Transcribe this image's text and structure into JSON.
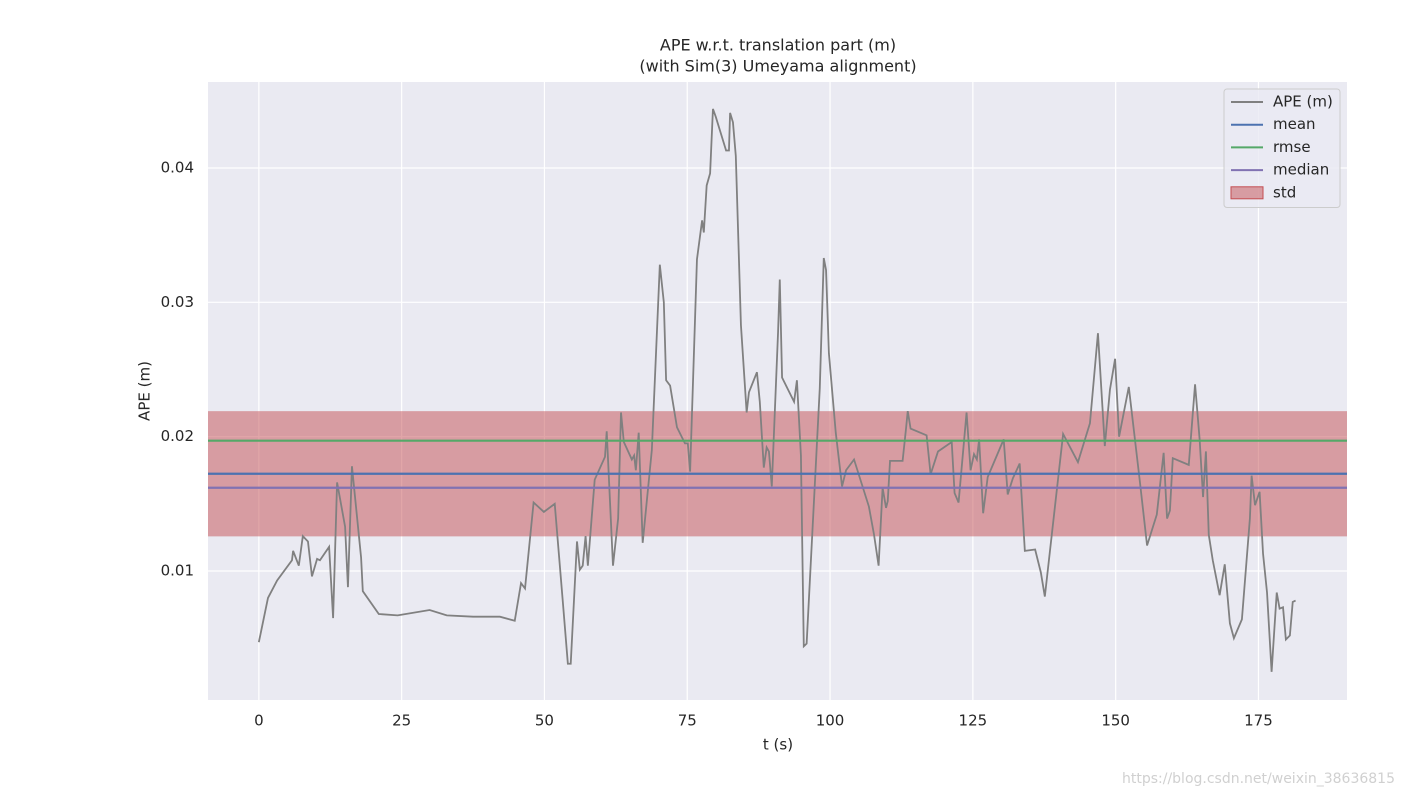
{
  "chart_data": {
    "type": "line",
    "title": "APE w.r.t. translation part (m)",
    "subtitle": "(with Sim(3) Umeyama alignment)",
    "x_label": "t (s)",
    "y_label": "APE (m)",
    "annotation": "https://blog.csdn.net/weixin_38636815",
    "xlim": [
      -8.9,
      190.5
    ],
    "ylim": [
      0.0004,
      0.0464
    ],
    "xticks": [
      0,
      25,
      50,
      75,
      100,
      125,
      150,
      175
    ],
    "yticks": [
      0.01,
      0.02,
      0.03,
      0.04
    ],
    "grid": true,
    "legend": "upper right",
    "x": [
      0.0,
      1.6,
      3.2,
      5.8,
      6.0,
      7.0,
      7.7,
      8.6,
      9.3,
      10.2,
      10.7,
      12.3,
      13.0,
      13.7,
      15.1,
      15.6,
      16.3,
      17.9,
      18.2,
      21.0,
      24.3,
      29.9,
      32.9,
      37.5,
      42.2,
      44.8,
      45.9,
      46.6,
      48.1,
      49.9,
      51.8,
      53.2,
      54.1,
      54.6,
      55.7,
      56.2,
      56.7,
      57.2,
      57.6,
      58.8,
      60.6,
      60.9,
      62.0,
      62.9,
      63.4,
      63.9,
      65.3,
      65.7,
      66.0,
      66.5,
      67.2,
      68.8,
      70.2,
      70.9,
      71.3,
      72.0,
      73.2,
      74.6,
      75.1,
      75.5,
      76.7,
      77.6,
      77.9,
      78.4,
      79.0,
      79.5,
      80.0,
      81.8,
      82.3,
      82.5,
      83.0,
      83.5,
      84.4,
      85.4,
      85.8,
      87.2,
      87.7,
      88.4,
      88.9,
      89.3,
      89.8,
      90.9,
      91.2,
      91.6,
      93.7,
      94.2,
      94.9,
      95.4,
      95.9,
      98.2,
      98.9,
      99.3,
      99.8,
      101.0,
      102.1,
      102.8,
      104.2,
      106.8,
      107.7,
      108.5,
      109.2,
      109.8,
      110.1,
      110.5,
      112.7,
      113.3,
      113.6,
      114.1,
      116.9,
      117.6,
      118.9,
      121.3,
      121.8,
      122.5,
      123.9,
      124.6,
      125.2,
      125.7,
      126.1,
      126.8,
      127.6,
      130.4,
      131.1,
      132.0,
      133.2,
      134.1,
      135.9,
      136.9,
      137.6,
      140.8,
      143.4,
      145.5,
      146.9,
      148.1,
      149.0,
      149.9,
      150.6,
      152.3,
      154.2,
      155.5,
      157.2,
      158.4,
      159.0,
      159.5,
      160.0,
      162.8,
      163.9,
      164.7,
      165.3,
      165.8,
      166.3,
      167.0,
      168.2,
      169.1,
      170.0,
      170.7,
      172.1,
      173.5,
      173.8,
      174.4,
      175.2,
      175.8,
      176.5,
      177.3,
      178.2,
      178.7,
      179.3,
      179.8,
      180.5,
      181.0,
      181.5
    ],
    "series": [
      {
        "name": "APE (m)",
        "color": "#808080",
        "values": [
          0.0047,
          0.008,
          0.0093,
          0.0108,
          0.0115,
          0.0104,
          0.0126,
          0.0122,
          0.0096,
          0.0109,
          0.0108,
          0.0118,
          0.0065,
          0.0166,
          0.0133,
          0.0088,
          0.0178,
          0.011,
          0.0085,
          0.0068,
          0.0067,
          0.0071,
          0.0067,
          0.0066,
          0.0066,
          0.0063,
          0.0091,
          0.0087,
          0.0151,
          0.0144,
          0.015,
          0.0078,
          0.0031,
          0.0031,
          0.0122,
          0.0101,
          0.0104,
          0.0126,
          0.0104,
          0.0168,
          0.0185,
          0.0204,
          0.0104,
          0.0139,
          0.0218,
          0.0196,
          0.0183,
          0.0186,
          0.0175,
          0.0203,
          0.0121,
          0.019,
          0.0328,
          0.03,
          0.0242,
          0.0238,
          0.0207,
          0.0195,
          0.0195,
          0.0174,
          0.0332,
          0.0361,
          0.0352,
          0.0387,
          0.0396,
          0.0444,
          0.0438,
          0.0413,
          0.0413,
          0.0441,
          0.0434,
          0.0409,
          0.0283,
          0.0218,
          0.0233,
          0.0248,
          0.0226,
          0.0177,
          0.0192,
          0.0189,
          0.0163,
          0.0278,
          0.0317,
          0.0244,
          0.0226,
          0.0242,
          0.0186,
          0.0044,
          0.0046,
          0.0236,
          0.0333,
          0.0324,
          0.0262,
          0.0203,
          0.0163,
          0.0175,
          0.0183,
          0.0148,
          0.0127,
          0.0104,
          0.0162,
          0.0147,
          0.0152,
          0.0182,
          0.0182,
          0.0206,
          0.0219,
          0.0206,
          0.0201,
          0.0172,
          0.0189,
          0.0196,
          0.0158,
          0.0151,
          0.0218,
          0.0175,
          0.0187,
          0.0183,
          0.0198,
          0.0143,
          0.017,
          0.0198,
          0.0157,
          0.0169,
          0.018,
          0.0115,
          0.0116,
          0.0099,
          0.0081,
          0.0202,
          0.0181,
          0.021,
          0.0277,
          0.0193,
          0.0235,
          0.0258,
          0.02,
          0.0237,
          0.0168,
          0.0119,
          0.0142,
          0.0188,
          0.0139,
          0.0145,
          0.0184,
          0.0179,
          0.0239,
          0.0198,
          0.0155,
          0.0189,
          0.0127,
          0.0108,
          0.0082,
          0.0105,
          0.0061,
          0.005,
          0.0064,
          0.0139,
          0.0171,
          0.0149,
          0.0159,
          0.0113,
          0.0084,
          0.0025,
          0.0084,
          0.0072,
          0.0073,
          0.0049,
          0.0052,
          0.0077,
          0.0078
        ]
      }
    ],
    "hlines": [
      {
        "name": "mean",
        "color": "#4c72b0",
        "value": 0.01724
      },
      {
        "name": "rmse",
        "color": "#55a868",
        "value": 0.0197
      },
      {
        "name": "median",
        "color": "#8172b2",
        "value": 0.0162
      }
    ],
    "band": {
      "name": "std",
      "color": "#c44e52",
      "value": 0.00466
    }
  }
}
